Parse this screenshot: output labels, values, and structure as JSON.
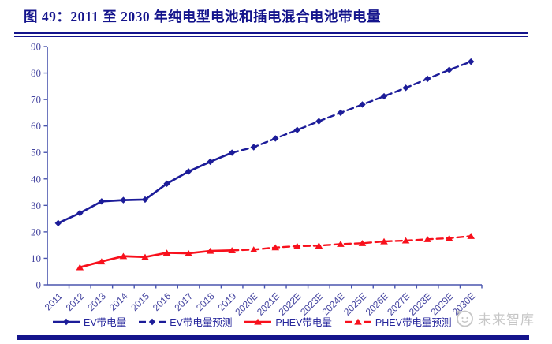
{
  "header": {
    "title": "图 49：2011 至 2030 年纯电型电池和插电混合电池带电量"
  },
  "watermark": {
    "text": "未来智库",
    "icon": "whale-cartoon-icon"
  },
  "colors": {
    "navy_accent": "#14148c",
    "ev_blue": "#1c1c99",
    "phev_red": "#f8101c",
    "axis_blue": "#4a55ae",
    "tick_label_blue": "#4545a0",
    "watermark_gray": "#c6c6c6"
  },
  "chart_data": {
    "type": "line",
    "title": "图 49：2011 至 2030 年纯电型电池和插电混合电池带电量",
    "xlabel": "",
    "ylabel": "",
    "grid": false,
    "legend_position": "bottom",
    "axis_color": "#4a55ae",
    "y_axis": {
      "min": 0,
      "max": 90,
      "step": 10,
      "ticks": [
        0,
        10,
        20,
        30,
        40,
        50,
        60,
        70,
        80,
        90
      ]
    },
    "categories": [
      "2011",
      "2012",
      "2013",
      "2014",
      "2015",
      "2016",
      "2017",
      "2018",
      "2019",
      "2020E",
      "2021E",
      "2022E",
      "2023E",
      "2024E",
      "2025E",
      "2026E",
      "2027E",
      "2028E",
      "2029E",
      "2030E"
    ],
    "series": [
      {
        "name": "EV带电量",
        "color": "#1c1c99",
        "line": "solid",
        "marker": "diamond",
        "values": [
          23.3,
          27.1,
          31.5,
          32.0,
          32.2,
          38.2,
          42.8,
          46.5,
          49.9,
          null,
          null,
          null,
          null,
          null,
          null,
          null,
          null,
          null,
          null,
          null
        ]
      },
      {
        "name": "EV带电量预测",
        "color": "#1c1c99",
        "line": "dashed",
        "marker": "diamond",
        "continues_from": "EV带电量",
        "values": [
          null,
          null,
          null,
          null,
          null,
          null,
          null,
          null,
          null,
          52.0,
          55.3,
          58.5,
          61.8,
          65.0,
          68.1,
          71.2,
          74.4,
          77.8,
          81.2,
          84.3
        ]
      },
      {
        "name": "PHEV带电量",
        "color": "#f8101c",
        "line": "solid",
        "marker": "triangle",
        "values": [
          null,
          6.6,
          8.8,
          10.8,
          10.5,
          12.1,
          11.9,
          12.8,
          13.0,
          null,
          null,
          null,
          null,
          null,
          null,
          null,
          null,
          null,
          null,
          null
        ]
      },
      {
        "name": "PHEV带电量预测",
        "color": "#f8101c",
        "line": "dashed",
        "marker": "triangle",
        "continues_from": "PHEV带电量",
        "values": [
          null,
          null,
          null,
          null,
          null,
          null,
          null,
          null,
          null,
          13.3,
          14.1,
          14.6,
          14.8,
          15.4,
          15.7,
          16.4,
          16.7,
          17.2,
          17.6,
          18.4
        ]
      }
    ]
  }
}
